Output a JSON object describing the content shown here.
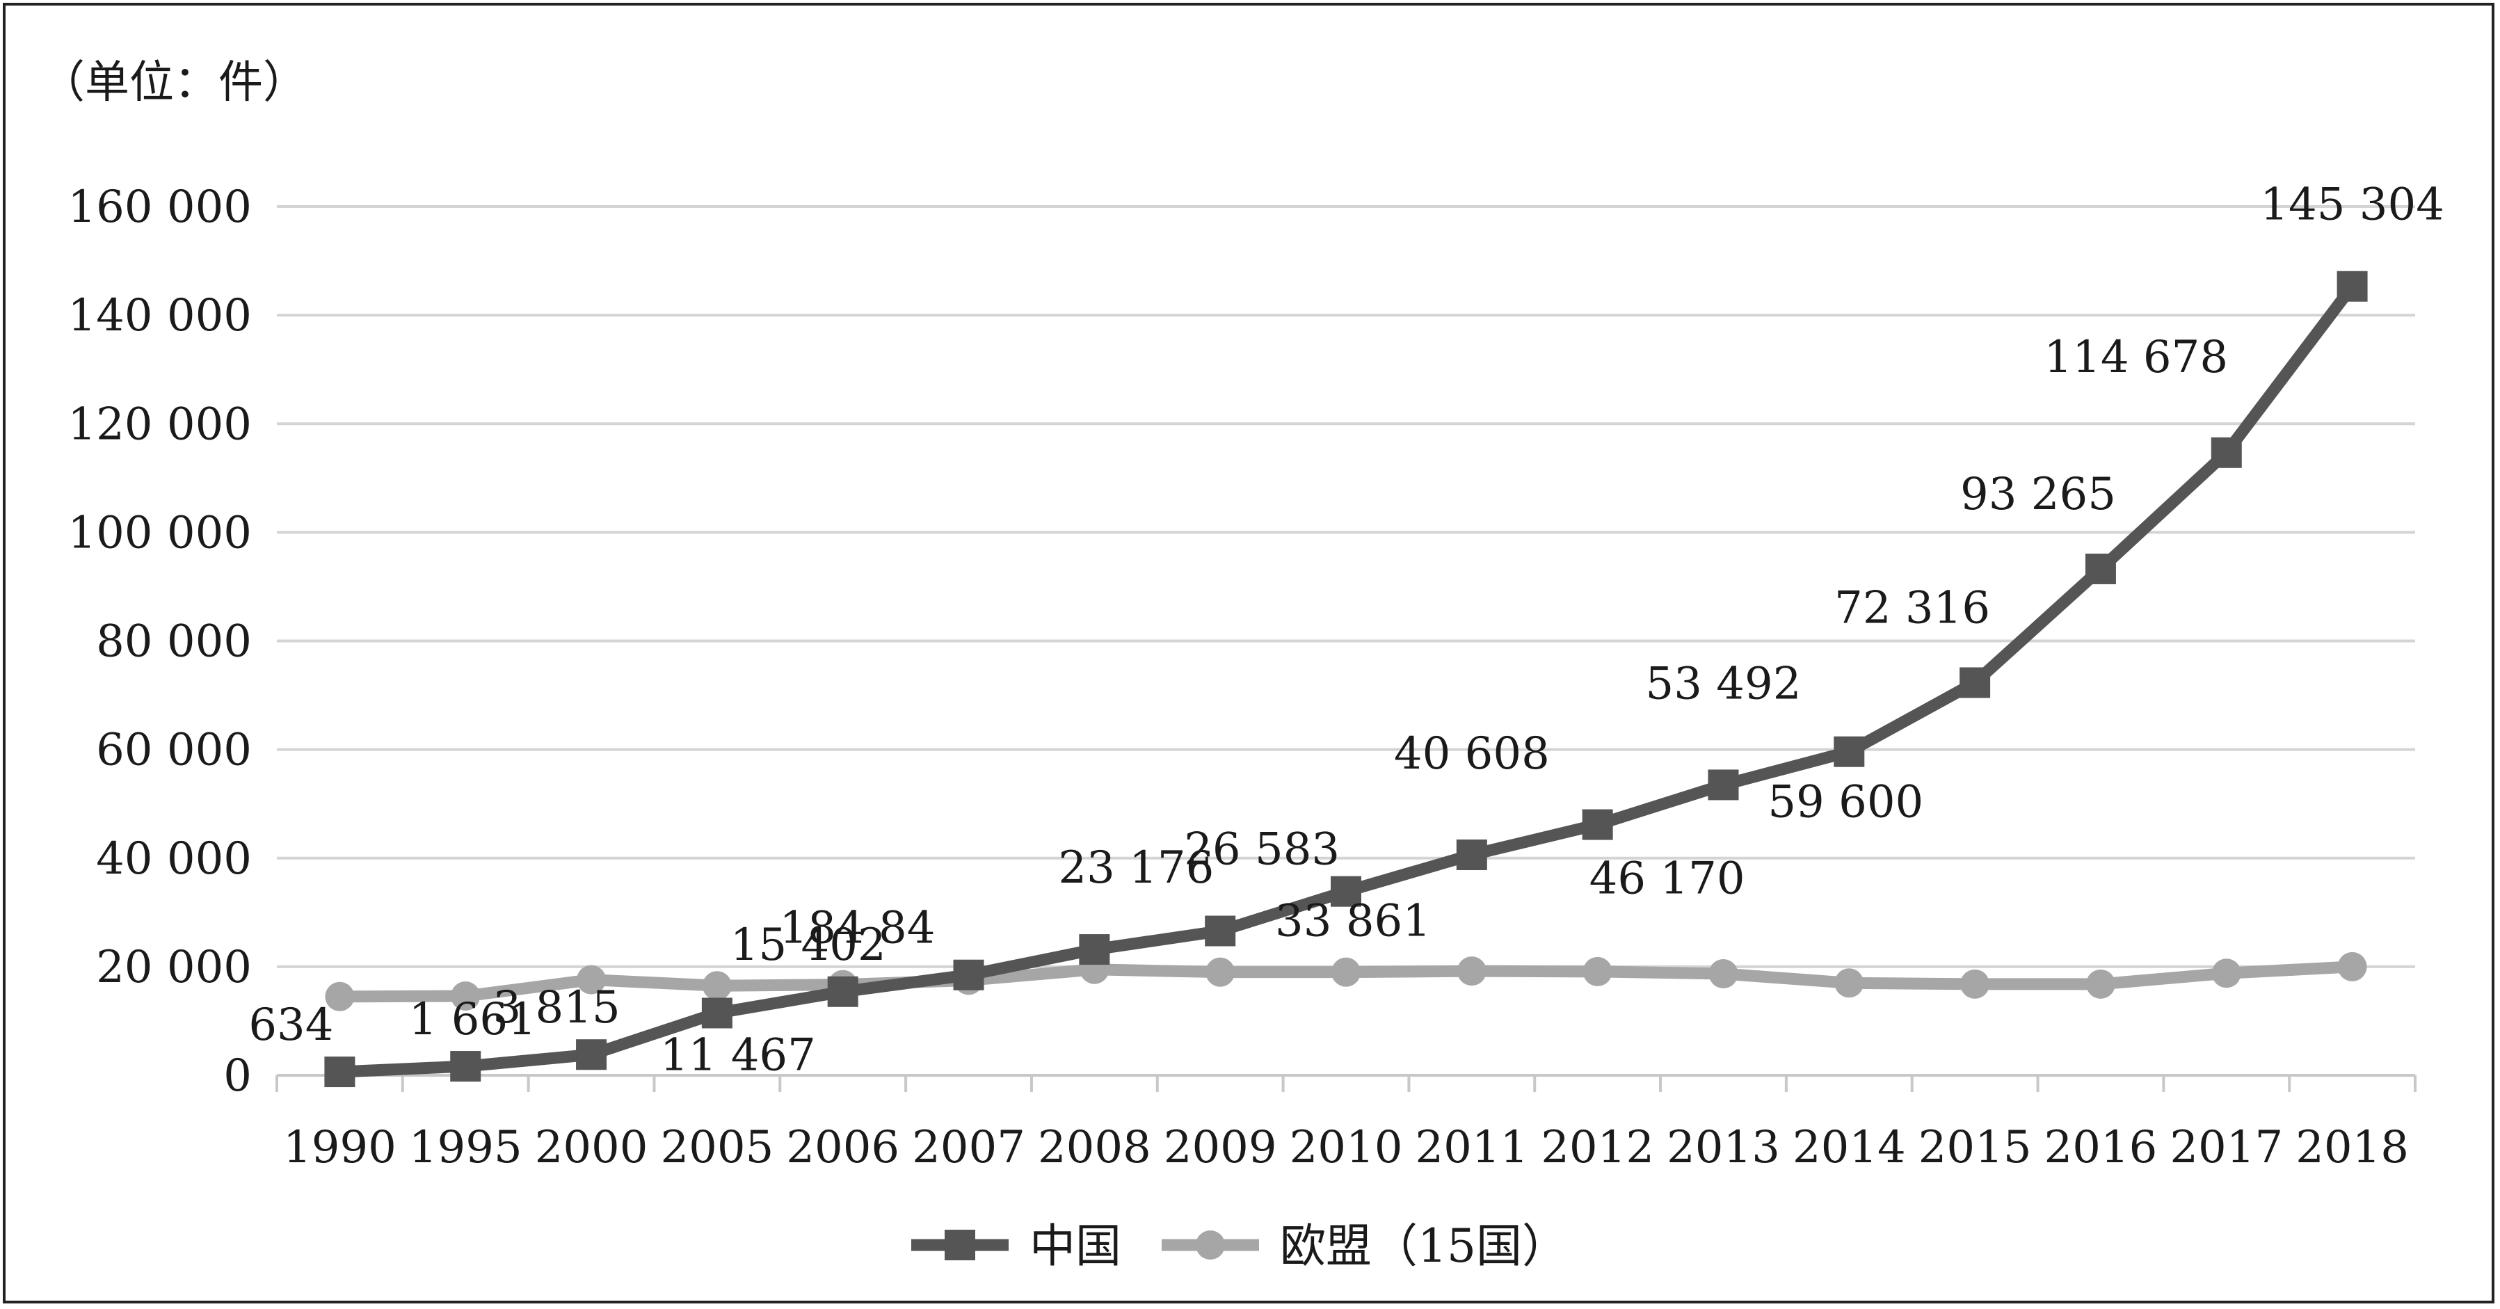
{
  "chart_data": {
    "type": "line",
    "unit_label": "（单位：件）",
    "categories": [
      "1990",
      "1995",
      "2000",
      "2005",
      "2006",
      "2007",
      "2008",
      "2009",
      "2010",
      "2011",
      "2012",
      "2013",
      "2014",
      "2015",
      "2016",
      "2017",
      "2018"
    ],
    "ylim": [
      0,
      160000
    ],
    "yticks": [
      0,
      20000,
      40000,
      60000,
      80000,
      100000,
      120000,
      140000,
      160000
    ],
    "ytick_labels": [
      "0",
      "20 000",
      "40 000",
      "60 000",
      "80 000",
      "100 000",
      "120 000",
      "140 000",
      "160 000"
    ],
    "grid": true,
    "legend_position": "bottom",
    "series": [
      {
        "name": "中国",
        "color": "#555555",
        "marker": "square",
        "values": [
          634,
          1661,
          3815,
          11467,
          15402,
          18484,
          23176,
          26583,
          33861,
          40608,
          46170,
          53492,
          59600,
          72316,
          93265,
          114678,
          145304
        ],
        "data_labels": [
          "634",
          "1 661",
          "3 815",
          "11 467",
          "15 402",
          "184 84",
          "23 176",
          "26 583",
          "33 861",
          "40 608",
          "46 170",
          "53 492",
          "59 600",
          "72 316",
          "93 265",
          "114 678",
          "145 304"
        ]
      },
      {
        "name": "欧盟（15国）",
        "color": "#a6a6a6",
        "marker": "circle",
        "values": [
          14500,
          14600,
          17600,
          16500,
          16700,
          17500,
          19500,
          19000,
          19000,
          19200,
          19100,
          18700,
          17000,
          16800,
          16800,
          18800,
          20000
        ]
      }
    ]
  }
}
